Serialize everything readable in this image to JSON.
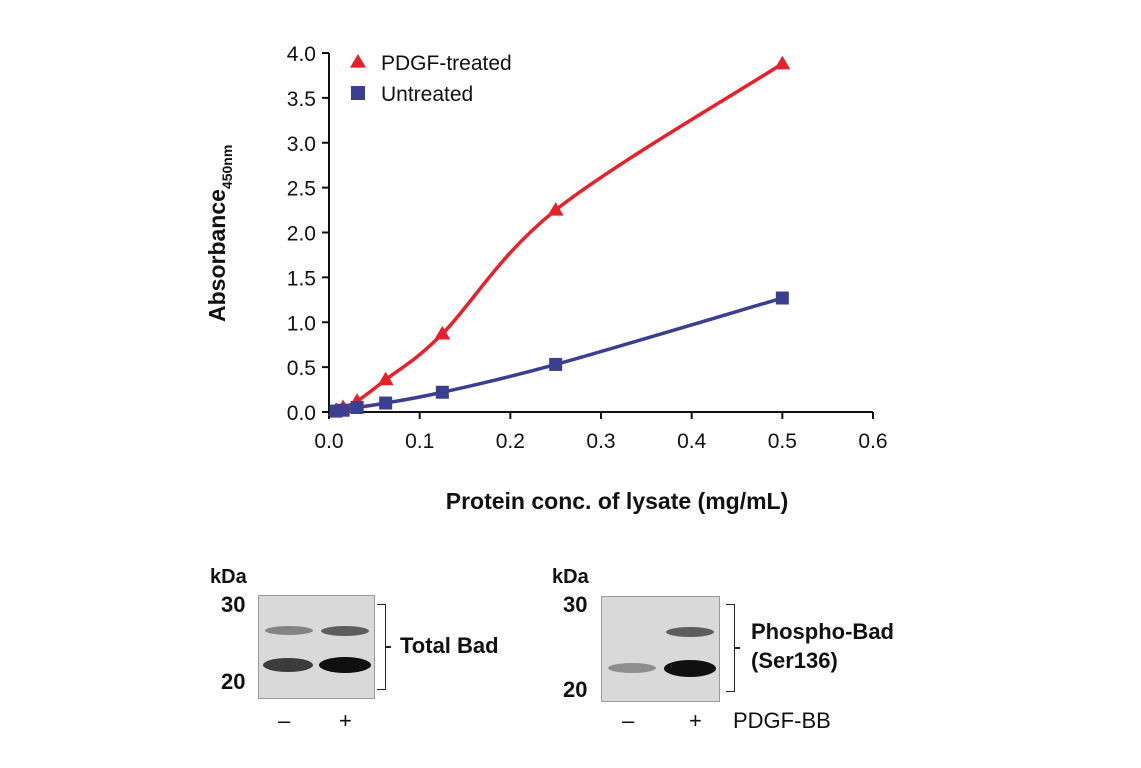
{
  "chart_data": {
    "type": "line",
    "title": "",
    "xlabel": "Protein conc. of lysate (mg/mL)",
    "ylabel_main": "Absorbance",
    "ylabel_sub": "450nm",
    "xlim": [
      0,
      0.6
    ],
    "ylim": [
      0,
      4.0
    ],
    "x_ticks": [
      "0.0",
      "0.1",
      "0.2",
      "0.3",
      "0.4",
      "0.5",
      "0.6"
    ],
    "y_ticks": [
      "0.0",
      "0.5",
      "1.0",
      "1.5",
      "2.0",
      "2.5",
      "3.0",
      "3.5",
      "4.0"
    ],
    "grid": false,
    "legend_position": "top-left",
    "series": [
      {
        "name": "PDGF-treated",
        "marker": "triangle",
        "color": "#e8202a",
        "x": [
          0.0078,
          0.0156,
          0.031,
          0.0625,
          0.125,
          0.25,
          0.5
        ],
        "y": [
          0.02,
          0.05,
          0.12,
          0.36,
          0.87,
          2.25,
          3.88
        ]
      },
      {
        "name": "Untreated",
        "marker": "square",
        "color": "#3a3f8f",
        "x": [
          0.0078,
          0.0156,
          0.031,
          0.0625,
          0.125,
          0.25,
          0.5
        ],
        "y": [
          0.01,
          0.02,
          0.05,
          0.1,
          0.22,
          0.53,
          1.27
        ]
      }
    ]
  },
  "blots": {
    "kda_label": "kDa",
    "marker_30": "30",
    "marker_20": "20",
    "left": {
      "label": "Total Bad"
    },
    "right": {
      "label_line1": "Phospho-Bad",
      "label_line2": "(Ser136)"
    },
    "lane_minus": "–",
    "lane_plus": "+",
    "treatment_label": "PDGF-BB"
  }
}
